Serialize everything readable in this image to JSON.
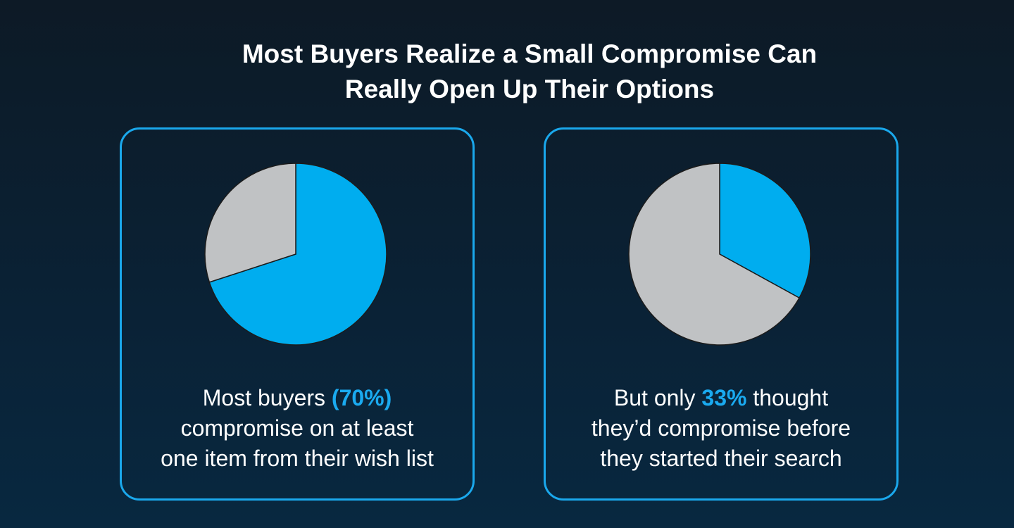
{
  "title": "Most Buyers Realize a Small Compromise Can Really Open Up Their Options",
  "chart_data": [
    {
      "type": "pie",
      "values": [
        70,
        30
      ],
      "colors": [
        "#00adef",
        "#c0c2c4"
      ],
      "caption": {
        "lead": "Most buyers",
        "highlight": "(70%)",
        "tail": "",
        "lines": [
          "compromise on at least",
          "one item from their wish list"
        ]
      }
    },
    {
      "type": "pie",
      "values": [
        33,
        67
      ],
      "colors": [
        "#00adef",
        "#c0c2c4"
      ],
      "caption": {
        "lead": "But only",
        "highlight": "33%",
        "tail": "thought",
        "lines": [
          "they’d compromise before",
          "they started their search"
        ]
      }
    }
  ]
}
